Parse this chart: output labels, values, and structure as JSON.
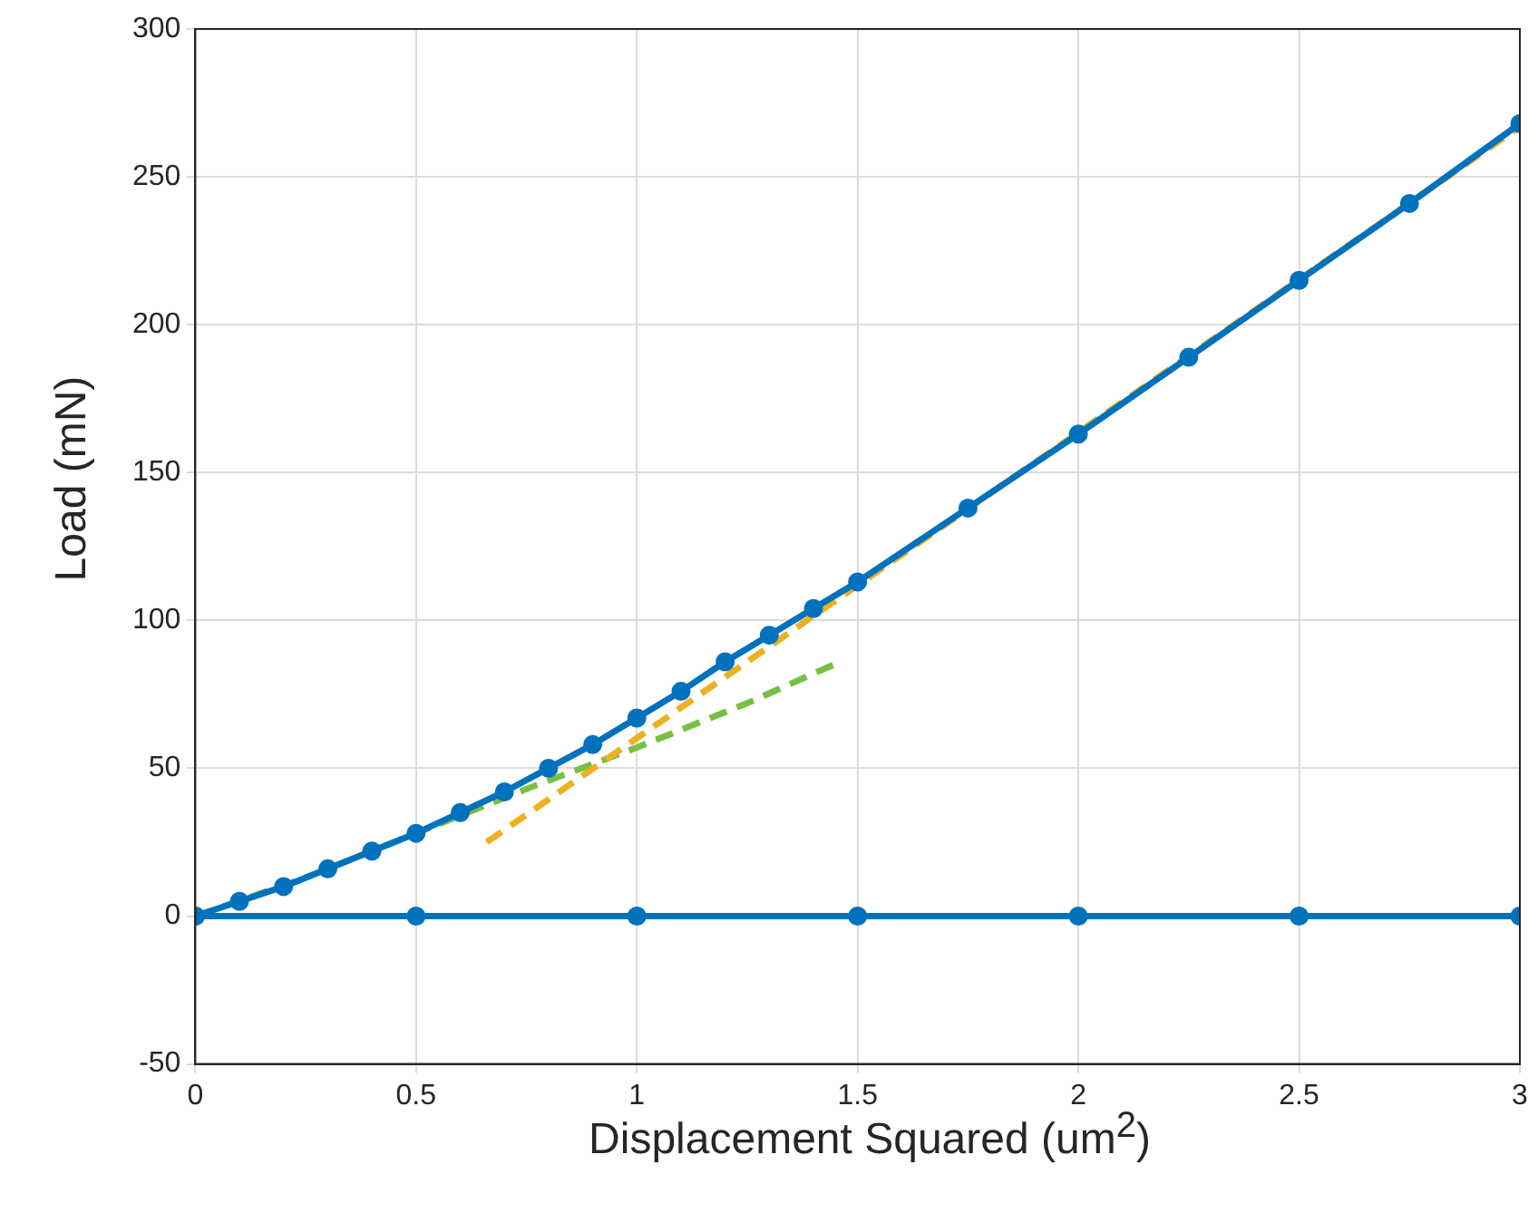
{
  "chart_data": {
    "type": "line",
    "xlabel": "Displacement Squared (um$^{2}$)",
    "ylabel": "Load (mN)",
    "xlim": [
      0,
      3
    ],
    "ylim": [
      -50,
      300
    ],
    "xticks": [
      0,
      0.5,
      1,
      1.5,
      2,
      2.5,
      3
    ],
    "yticks": [
      -50,
      0,
      50,
      100,
      150,
      200,
      250,
      300
    ],
    "grid": true,
    "legend": false,
    "series": [
      {
        "color": "#0072bd",
        "marker": "circle",
        "line_style": "solid",
        "x": [
          0,
          0.1,
          0.2,
          0.3,
          0.4,
          0.5,
          0.6,
          0.7,
          0.8,
          0.9,
          1,
          1.1,
          1.2,
          1.3,
          1.4,
          1.5,
          1.75,
          2,
          2.25,
          2.5,
          2.75,
          3
        ],
        "values": [
          0,
          5,
          10,
          16,
          22,
          28,
          35,
          42,
          50,
          58,
          67,
          76,
          86,
          95,
          104,
          113,
          138,
          163,
          189,
          215,
          241,
          268
        ]
      },
      {
        "color": "#0072bd",
        "marker": "circle",
        "line_style": "solid",
        "x": [
          0,
          0.5,
          1,
          1.5,
          2,
          2.5,
          3
        ],
        "values": [
          0,
          0,
          0,
          0,
          0,
          0,
          0
        ]
      },
      {
        "color": "#edb120",
        "marker": "none",
        "line_style": "dashed",
        "x": [
          0.66,
          3
        ],
        "values": [
          25,
          267
        ]
      },
      {
        "color": "#77c043",
        "marker": "none",
        "line_style": "dashed",
        "x": [
          0,
          0.25,
          0.5,
          0.75,
          1,
          1.25,
          1.46
        ],
        "values": [
          0,
          13,
          28,
          43,
          57,
          72,
          86
        ]
      }
    ]
  }
}
